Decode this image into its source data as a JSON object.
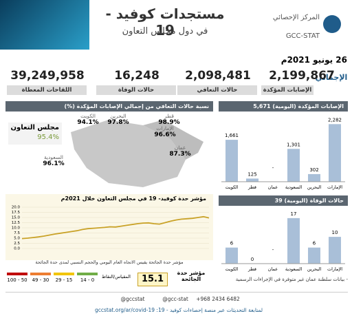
{
  "header": {
    "title": "مستجدات كوفيد - 19",
    "subtitle": "في دول مجلس التعاون",
    "org_ar": "المركز الإحصائي",
    "org_en": "GCC-STAT"
  },
  "date": "26 يونيو 2021م",
  "totals": {
    "label": "الإجمالي",
    "items": [
      {
        "value": "2,199,867",
        "label": "الإصابات المؤكدة"
      },
      {
        "value": "2,098,481",
        "label": "حالات التعافي"
      },
      {
        "value": "16,248",
        "label": "حالات الوفاة"
      },
      {
        "value": "39,249,958",
        "label": "اللقاحات المعطاة"
      }
    ]
  },
  "recovery_map": {
    "title": "نسبة حالات التعافي من إجمالي الإصابات المؤكدة (%)",
    "gcc": {
      "name": "مجلس التعاون",
      "value": "95.4%"
    },
    "countries": [
      {
        "name": "الكويت",
        "value": "94.1%"
      },
      {
        "name": "البحرين",
        "value": "97.8%"
      },
      {
        "name": "قطر",
        "value": "98.9%"
      },
      {
        "name": "الإمارات",
        "value": "96.6%"
      },
      {
        "name": "عمان",
        "value": "87.3%"
      },
      {
        "name": "السعودية",
        "value": "96.1%"
      }
    ]
  },
  "chart_data": [
    {
      "type": "bar",
      "title": "الإصابات المؤكدة (اليومية)",
      "total": "5,671",
      "categories": [
        "الكويت",
        "قطر",
        "عمان",
        "السعودية",
        "البحرين",
        "الإمارات"
      ],
      "values": [
        1661,
        125,
        null,
        1301,
        302,
        2282
      ],
      "value_labels": [
        "1,661",
        "125",
        "-",
        "1,301",
        "302",
        "2,282"
      ],
      "color": "#a9bfd8",
      "ylim": [
        0,
        2400
      ]
    },
    {
      "type": "bar",
      "title": "حالات الوفاة (اليومية)",
      "total": "39",
      "categories": [
        "الكويت",
        "قطر",
        "عمان",
        "السعودية",
        "البحرين",
        "الإمارات"
      ],
      "values": [
        6,
        0,
        null,
        17,
        6,
        10
      ],
      "value_labels": [
        "6",
        "0",
        "-",
        "17",
        "6",
        "10"
      ],
      "color": "#a9bfd8",
      "ylim": [
        0,
        18
      ]
    },
    {
      "type": "line",
      "title": "مؤشر حدة كوفيد- 19 في مجلس التعاون خلال 2021م",
      "values": [
        4.8,
        5.0,
        5.3,
        5.6,
        6.0,
        6.5,
        7.0,
        7.4,
        7.8,
        8.2,
        8.6,
        9.2,
        9.6,
        9.8,
        10.0,
        10.2,
        10.5,
        10.4,
        10.8,
        11.2,
        11.6,
        12.0,
        12.3,
        12.4,
        12.0,
        11.8,
        12.5,
        13.2,
        13.8,
        14.2,
        14.4,
        14.6,
        15.0,
        15.4,
        14.8
      ],
      "color": "#c9a227",
      "ylim": [
        0,
        20
      ],
      "yticks": [
        {
          "value": 0,
          "label": "0.0"
        },
        {
          "value": 2.5,
          "label": "2.5"
        },
        {
          "value": 5,
          "label": "5.0"
        },
        {
          "value": 7.5,
          "label": "7.5"
        },
        {
          "value": 10,
          "label": "10.0"
        },
        {
          "value": 12.5,
          "label": "12.5"
        },
        {
          "value": 15,
          "label": "15.0"
        },
        {
          "value": 17.5,
          "label": "17.5"
        },
        {
          "value": 20,
          "label": "20.0"
        }
      ],
      "grid": true,
      "note": "مؤشر حدة الجائحة يقيس الاتجاه العام اليومي والحجم النسبي لمدى حدة الجائحة"
    }
  ],
  "severity": {
    "label": "مؤشر حدة الجائحة",
    "value": "15.1",
    "scale_label": "المقياس/النقاط",
    "ranges": [
      {
        "label": "14 - 0",
        "color": "#70ad47"
      },
      {
        "label": "29 - 15",
        "color": "#f2c500"
      },
      {
        "label": "49 - 30",
        "color": "#ed7d31"
      },
      {
        "label": "100 - 50",
        "color": "#c00000"
      }
    ]
  },
  "note": "- بيانات سلطنة عمان غير متوفرة في الإجراءات الرسمية",
  "footer": {
    "handles": [
      "@gccstat",
      "@gcc-stat",
      "+968 2434 6482"
    ],
    "follow": "لمتابعة التحديثات عبر منصة إحصاءات كوفيد - 19: gccstat.org/ar/covid-19"
  }
}
